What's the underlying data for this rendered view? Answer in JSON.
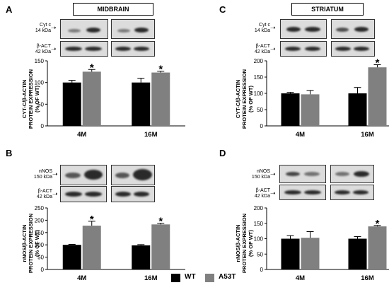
{
  "colors": {
    "wt": "#000000",
    "a53t": "#808080"
  },
  "legend": [
    {
      "label": "WT",
      "color": "#000000"
    },
    {
      "label": "A53T",
      "color": "#808080"
    }
  ],
  "chart_data": [
    {
      "panel": "A",
      "type": "bar",
      "title": "MIDBRAIN",
      "ylabel_line1": "CYT-C/β-ACTIN",
      "ylabel_line2": "PROTEIN EXPRESSION",
      "ylabel_line3": "(% OF WT)",
      "blot_labels": [
        {
          "name": "Cyt c",
          "kda": "14 kDa"
        },
        {
          "name": "β-ACT",
          "kda": "42 kDa"
        }
      ],
      "categories": [
        "4M",
        "16M"
      ],
      "ylim": [
        0,
        150
      ],
      "yticks": [
        0,
        50,
        100,
        150
      ],
      "series": [
        {
          "name": "WT",
          "color": "#000000",
          "values": [
            100,
            100
          ],
          "errors": [
            5,
            10
          ]
        },
        {
          "name": "A53T",
          "color": "#808080",
          "values": [
            125,
            123
          ],
          "errors": [
            5,
            3
          ]
        }
      ],
      "annotations": [
        {
          "category": 0,
          "series": 1,
          "text": "*"
        },
        {
          "category": 1,
          "series": 1,
          "text": "*"
        }
      ]
    },
    {
      "panel": "C",
      "type": "bar",
      "title": "STRIATUM",
      "ylabel_line1": "CYT-C/β-ACTIN",
      "ylabel_line2": "PROTEIN EXPRESSION",
      "ylabel_line3": "(% OF WT)",
      "blot_labels": [
        {
          "name": "Cyt c",
          "kda": "14 kDa"
        },
        {
          "name": "β-ACT",
          "kda": "42 kDa"
        }
      ],
      "categories": [
        "4M",
        "16M"
      ],
      "ylim": [
        0,
        200
      ],
      "yticks": [
        0,
        50,
        100,
        150,
        200
      ],
      "series": [
        {
          "name": "WT",
          "color": "#000000",
          "values": [
            100,
            100
          ],
          "errors": [
            3,
            18
          ]
        },
        {
          "name": "A53T",
          "color": "#808080",
          "values": [
            97,
            180
          ],
          "errors": [
            12,
            8
          ]
        }
      ],
      "annotations": [
        {
          "category": 1,
          "series": 1,
          "text": "*"
        }
      ]
    },
    {
      "panel": "B",
      "type": "bar",
      "title": "",
      "ylabel_line1": "nNOS/β-ACTIN",
      "ylabel_line2": "PROTEIN EXPRESSION",
      "ylabel_line3": "(% OF WT)",
      "blot_labels": [
        {
          "name": "nNOS",
          "kda": "150 kDa"
        },
        {
          "name": "β-ACT",
          "kda": "42 kDa"
        }
      ],
      "categories": [
        "4M",
        "16M"
      ],
      "ylim": [
        0,
        250
      ],
      "yticks": [
        0,
        50,
        100,
        150,
        200,
        250
      ],
      "series": [
        {
          "name": "WT",
          "color": "#000000",
          "values": [
            100,
            98
          ],
          "errors": [
            2,
            3
          ]
        },
        {
          "name": "A53T",
          "color": "#808080",
          "values": [
            178,
            183
          ],
          "errors": [
            18,
            5
          ]
        }
      ],
      "annotations": [
        {
          "category": 0,
          "series": 1,
          "text": "*"
        },
        {
          "category": 1,
          "series": 1,
          "text": "*"
        }
      ]
    },
    {
      "panel": "D",
      "type": "bar",
      "title": "",
      "ylabel_line1": "nNOS/β-ACTIN",
      "ylabel_line2": "PROTEIN EXPRESSION",
      "ylabel_line3": "(% OF WT)",
      "blot_labels": [
        {
          "name": "nNOS",
          "kda": "150 kDa"
        },
        {
          "name": "β-ACT",
          "kda": "42 kDa"
        }
      ],
      "categories": [
        "4M",
        "16M"
      ],
      "ylim": [
        0,
        200
      ],
      "yticks": [
        0,
        50,
        100,
        150,
        200
      ],
      "series": [
        {
          "name": "WT",
          "color": "#000000",
          "values": [
            100,
            100
          ],
          "errors": [
            10,
            7
          ]
        },
        {
          "name": "A53T",
          "color": "#808080",
          "values": [
            103,
            140
          ],
          "errors": [
            20,
            3
          ]
        }
      ],
      "annotations": [
        {
          "category": 1,
          "series": 1,
          "text": "*"
        }
      ]
    }
  ]
}
